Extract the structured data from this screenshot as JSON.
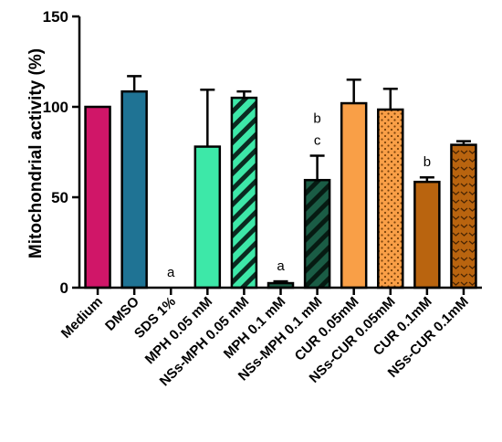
{
  "chart_data": {
    "type": "bar",
    "ylabel": "Mitochondrial activity (%)",
    "xlabel": "",
    "title": "",
    "ylim": [
      0,
      150
    ],
    "yticks": [
      0,
      50,
      100,
      150
    ],
    "grid": false,
    "legend": "none",
    "categories": [
      "Medium",
      "DMSO",
      "SDS 1%",
      "MPH 0.05 mM",
      "NSs-MPH 0.05 mM",
      "MPH 0.1 mM",
      "NSs-MPH 0.1 mM",
      "CUR 0.05mM",
      "NSs-CUR 0.05mM",
      "CUR 0.1mM",
      "NSs-CUR 0.1mM"
    ],
    "values": [
      100,
      108.5,
      0,
      78,
      105,
      2.5,
      59.5,
      102,
      98.5,
      58.5,
      79
    ],
    "errors": [
      0,
      8.5,
      0,
      31.5,
      3.5,
      1,
      13.5,
      13,
      11.5,
      2.5,
      2
    ],
    "colors": [
      "#d01668",
      "#1f7394",
      "#ffffff",
      "#3de8a8",
      "#3de8a8",
      "#1a5c45",
      "#1a5c45",
      "#f99f47",
      "#f99f47",
      "#b9640f",
      "#b9640f"
    ],
    "patterns": [
      "solid",
      "solid",
      "solid",
      "solid",
      "stripes",
      "solid",
      "stripes",
      "solid",
      "dots",
      "solid",
      "chevrons"
    ],
    "annotations": [
      {
        "category": "SDS 1%",
        "lines": [
          "a"
        ]
      },
      {
        "category": "MPH 0.1 mM",
        "lines": [
          "a"
        ]
      },
      {
        "category": "NSs-MPH 0.1 mM",
        "lines": [
          "b",
          "c"
        ]
      },
      {
        "category": "CUR 0.1mM",
        "lines": [
          "b"
        ]
      }
    ]
  }
}
